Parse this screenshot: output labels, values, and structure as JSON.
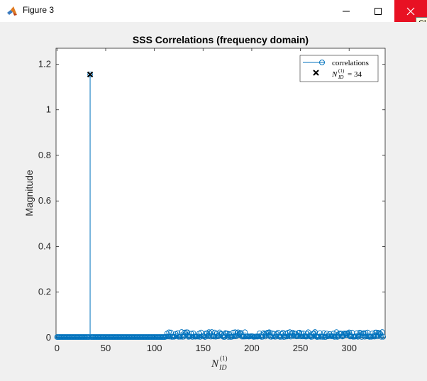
{
  "window": {
    "title": "Figure 3",
    "tooltip": "Cl",
    "controls": [
      "minimize",
      "maximize",
      "close"
    ]
  },
  "chart_data": {
    "type": "stem",
    "title": "SSS Correlations (frequency domain)",
    "ylabel": "Magnitude",
    "xlabel": "N_ID^(1)",
    "xlim": [
      -1,
      337
    ],
    "ylim": [
      0,
      1.27
    ],
    "xticks": [
      0,
      50,
      100,
      150,
      200,
      250,
      300
    ],
    "yticks": [
      0,
      0.2,
      0.4,
      0.6,
      0.8,
      1,
      1.2
    ],
    "ytick_labels": [
      "0",
      "0.2",
      "0.4",
      "0.6",
      "0.8",
      "1",
      "1.2"
    ],
    "series": [
      {
        "name": "correlations",
        "color": "#0072bd",
        "marker": "circle",
        "peak": {
          "x": 34,
          "y": 1.155
        },
        "baseline_value": 0.003,
        "noise_start": 112,
        "noise_max": 0.025,
        "x_range": [
          0,
          335
        ]
      },
      {
        "name": "N_ID^(1) = 34",
        "color": "#000000",
        "marker": "x",
        "points": [
          {
            "x": 34,
            "y": 1.155
          }
        ]
      }
    ],
    "legend": {
      "position": "top-right",
      "entries": [
        {
          "label": "correlations",
          "style": "line-circle",
          "color": "#0072bd"
        },
        {
          "label_base": "N",
          "label_sup": "(1)",
          "label_sub": "ID",
          "label_rest": "= 34",
          "style": "x",
          "color": "#000000"
        }
      ]
    },
    "grid": false
  }
}
